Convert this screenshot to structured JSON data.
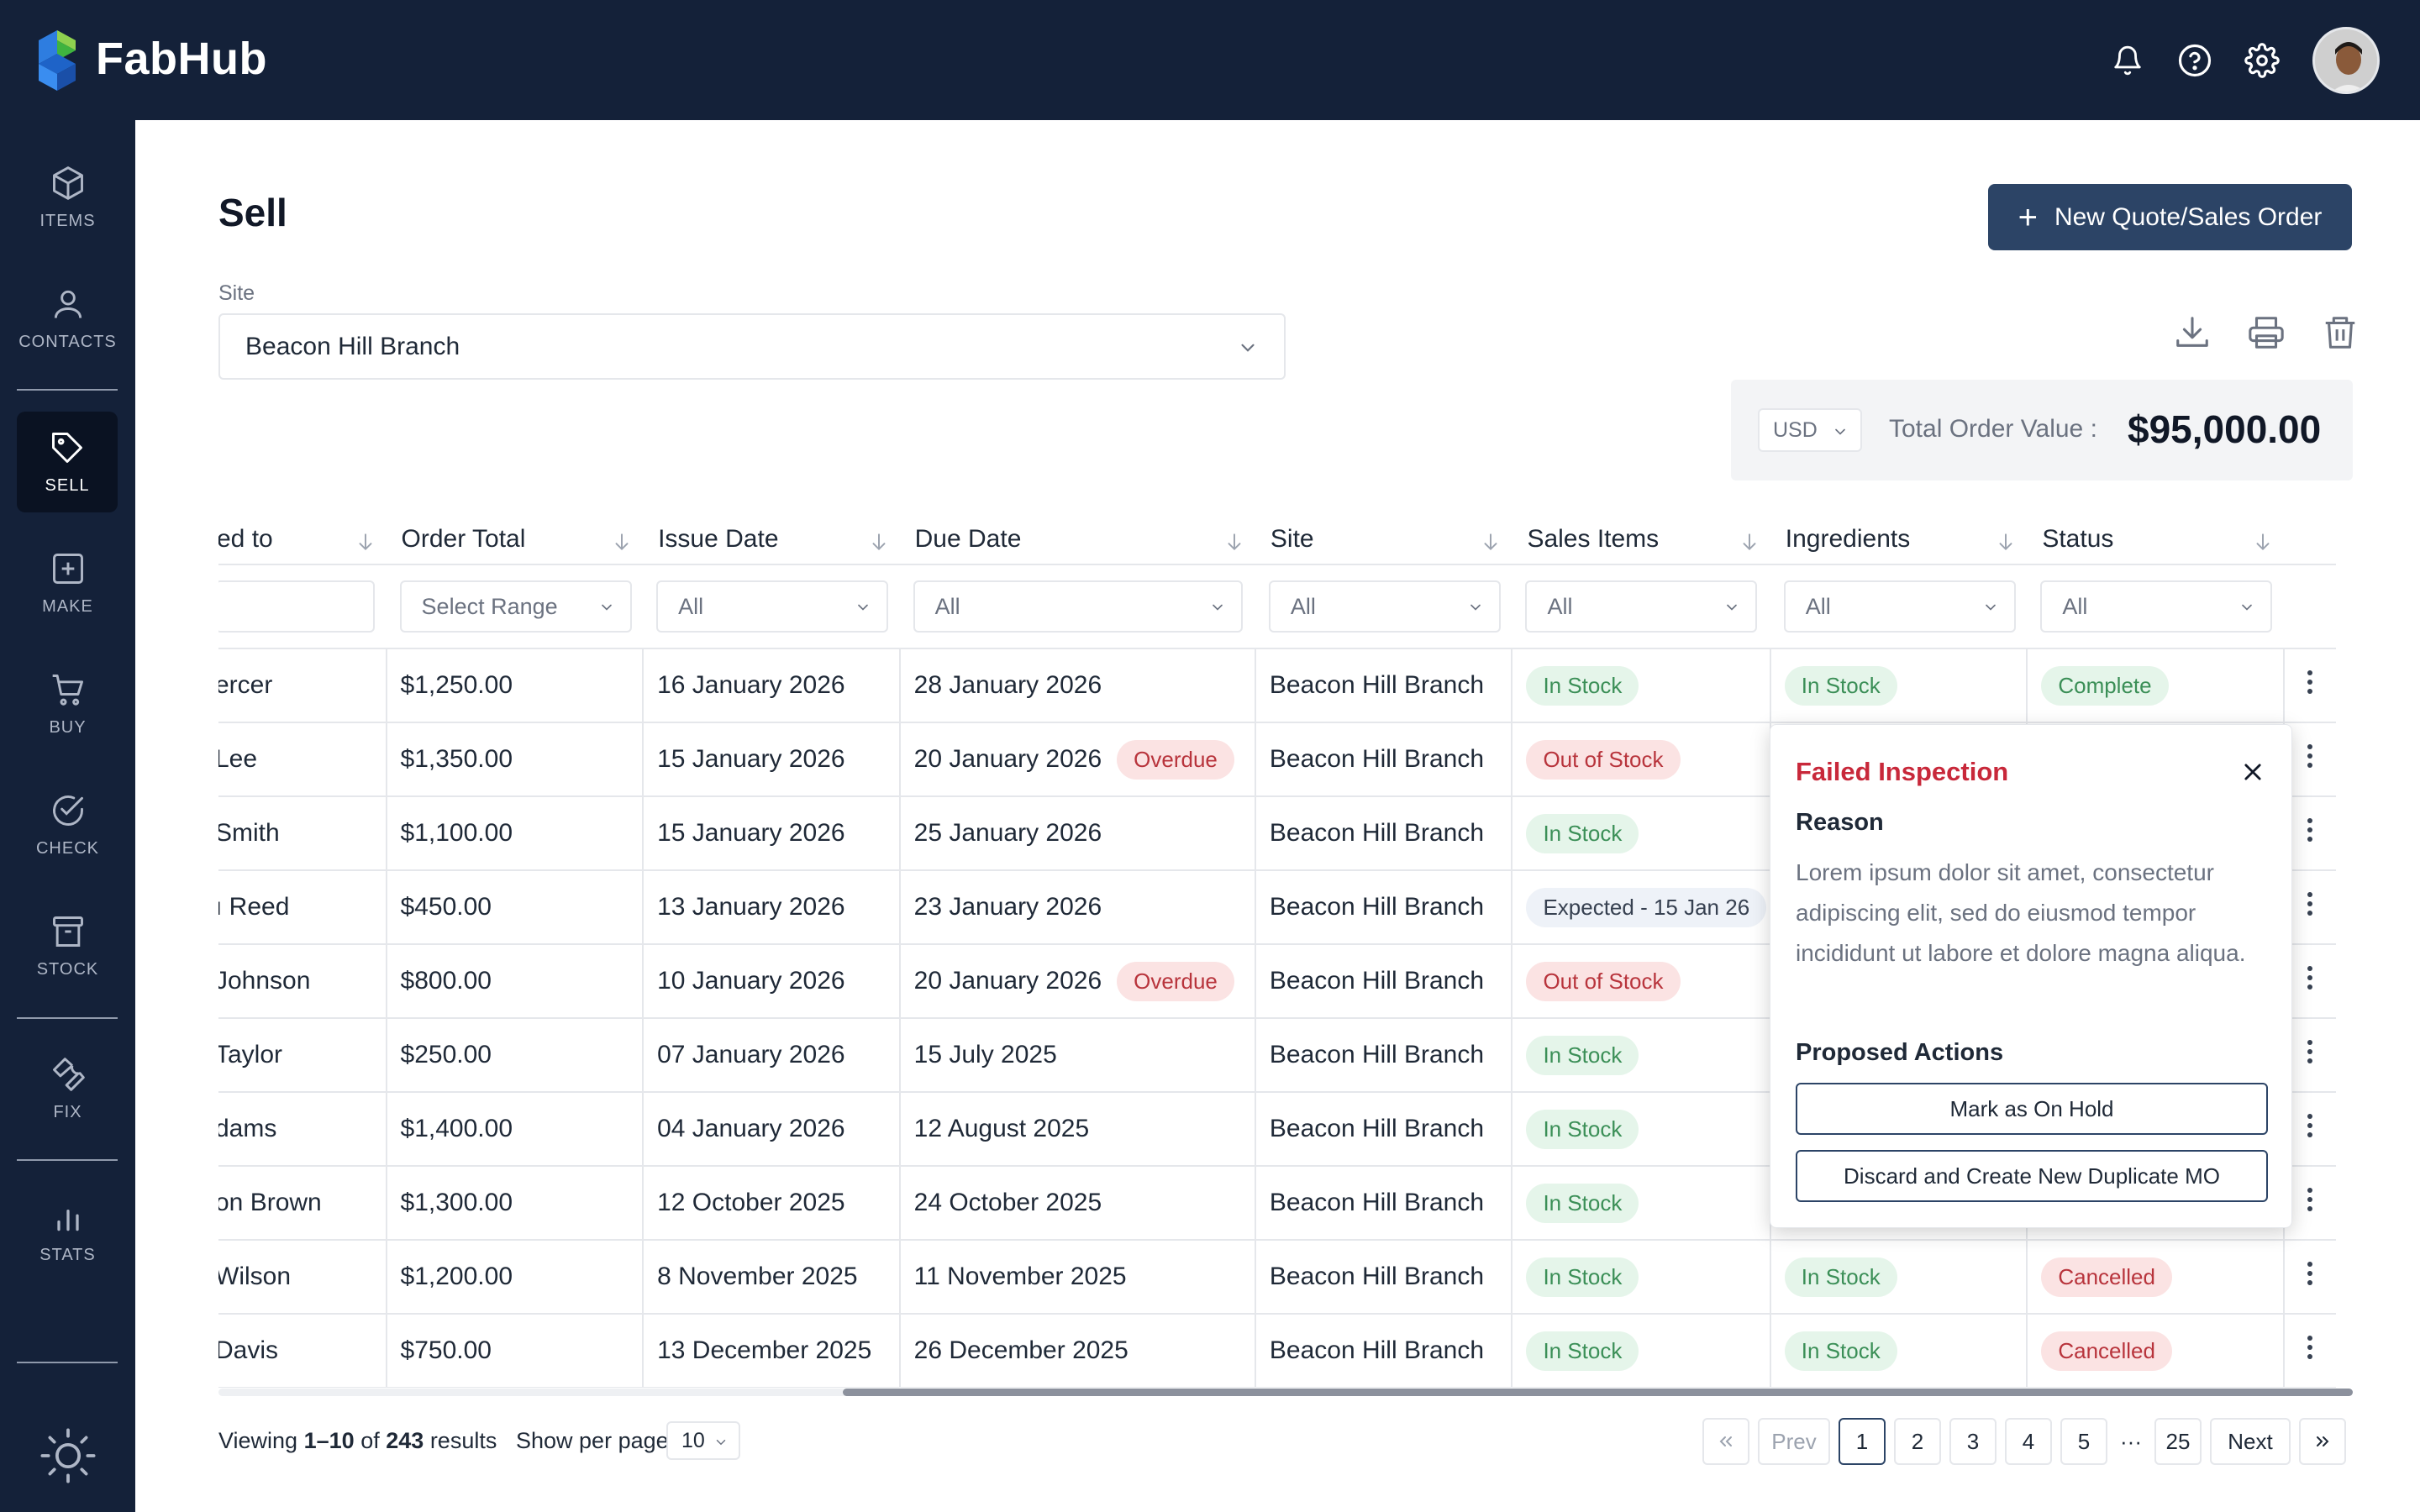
{
  "app": {
    "name": "FabHub"
  },
  "colors": {
    "nav_bg": "#142139",
    "primary": "#2c4466",
    "danger": "#c8283a",
    "success_bg": "#e5f5ea",
    "success_fg": "#3b8f57"
  },
  "topbar": {
    "icons": [
      "bell-icon",
      "help-icon",
      "gear-icon"
    ],
    "avatar": "user-avatar"
  },
  "sidebar": {
    "items": [
      {
        "label": "ITEMS",
        "icon": "cube-icon"
      },
      {
        "label": "CONTACTS",
        "icon": "person-icon"
      },
      {
        "label": "SELL",
        "icon": "tag-icon",
        "active": true
      },
      {
        "label": "MAKE",
        "icon": "plus-square-icon"
      },
      {
        "label": "BUY",
        "icon": "cart-icon"
      },
      {
        "label": "CHECK",
        "icon": "check-circle-icon"
      },
      {
        "label": "STOCK",
        "icon": "archive-icon"
      },
      {
        "label": "FIX",
        "icon": "wrench-icon"
      },
      {
        "label": "STATS",
        "icon": "bar-chart-icon"
      }
    ],
    "footer_icon": "sun-icon"
  },
  "page": {
    "title": "Sell",
    "new_button": "New Quote/Sales Order",
    "site_label": "Site",
    "site_value": "Beacon Hill Branch"
  },
  "totals": {
    "currency": "USD",
    "label": "Total Order Value",
    "separator": ":",
    "value": "$95,000.00"
  },
  "table": {
    "columns": [
      "ed to",
      "Order Total",
      "Issue Date",
      "Due Date",
      "Site",
      "Sales Items",
      "Ingredients",
      "Status"
    ],
    "filters": [
      "",
      "Select Range",
      "All",
      "All",
      "All",
      "All",
      "All",
      "All"
    ],
    "rows": [
      {
        "to": "ercer",
        "total": "$1,250.00",
        "issue": "16 January 2026",
        "due": "28 January 2026",
        "overdue": "",
        "site": "Beacon Hill Branch",
        "sales": "In Stock",
        "ingredients": "In Stock",
        "status": "Complete"
      },
      {
        "to": " Lee",
        "total": "$1,350.00",
        "issue": "15 January 2026",
        "due": "20 January 2026",
        "overdue": "Overdue",
        "site": "Beacon Hill Branch",
        "sales": "Out of Stock",
        "ingredients": "",
        "status": ""
      },
      {
        "to": "Smith",
        "total": "$1,100.00",
        "issue": "15 January 2026",
        "due": "25 January 2026",
        "overdue": "",
        "site": "Beacon Hill Branch",
        "sales": "In Stock",
        "ingredients": "",
        "status": ""
      },
      {
        "to": "ı Reed",
        "total": "$450.00",
        "issue": "13 January 2026",
        "due": "23 January 2026",
        "overdue": "",
        "site": "Beacon Hill Branch",
        "sales": "Expected - 15 Jan 26",
        "ingredients": "",
        "status": ""
      },
      {
        "to": "Johnson",
        "total": "$800.00",
        "issue": "10 January 2026",
        "due": "20 January 2026",
        "overdue": "Overdue",
        "site": "Beacon Hill Branch",
        "sales": "Out of Stock",
        "ingredients": "",
        "status": ""
      },
      {
        "to": "Taylor",
        "total": "$250.00",
        "issue": "07 January 2026",
        "due": "15 July 2025",
        "overdue": "",
        "site": "Beacon Hill Branch",
        "sales": "In Stock",
        "ingredients": "",
        "status": ""
      },
      {
        "to": "dams",
        "total": "$1,400.00",
        "issue": "04 January 2026",
        "due": "12 August 2025",
        "overdue": "",
        "site": "Beacon Hill Branch",
        "sales": "In Stock",
        "ingredients": "",
        "status": ""
      },
      {
        "to": "on Brown",
        "total": "$1,300.00",
        "issue": "12 October 2025",
        "due": "24 October 2025",
        "overdue": "",
        "site": "Beacon Hill Branch",
        "sales": "In Stock",
        "ingredients": "",
        "status": ""
      },
      {
        "to": "Wilson",
        "total": "$1,200.00",
        "issue": "8 November 2025",
        "due": "11 November 2025",
        "overdue": "",
        "site": "Beacon Hill Branch",
        "sales": "In Stock",
        "ingredients": "In Stock",
        "status": "Cancelled"
      },
      {
        "to": "Davis",
        "total": "$750.00",
        "issue": "13 December 2025",
        "due": "26 December 2025",
        "overdue": "",
        "site": "Beacon Hill Branch",
        "sales": "In Stock",
        "ingredients": "In Stock",
        "status": "Cancelled"
      }
    ]
  },
  "footer": {
    "viewing_prefix": "Viewing",
    "viewing_range": "1–10",
    "viewing_of": "of",
    "viewing_total": "243",
    "viewing_suffix": "results",
    "per_page_label": "Show per page",
    "per_page_value": "10",
    "pager": {
      "first": "«",
      "prev": "Prev",
      "pages": [
        "1",
        "2",
        "3",
        "4",
        "5"
      ],
      "ellipsis": "···",
      "last_page": "25",
      "next": "Next",
      "last": "»",
      "current": "1"
    }
  },
  "popover": {
    "title": "Failed Inspection",
    "reason_label": "Reason",
    "reason_text": "Lorem ipsum dolor sit amet, consectetur adipiscing elit, sed do eiusmod tempor incididunt ut labore et dolore magna aliqua.",
    "actions_label": "Proposed Actions",
    "action_1": "Mark as On Hold",
    "action_2": "Discard and Create New Duplicate MO"
  }
}
